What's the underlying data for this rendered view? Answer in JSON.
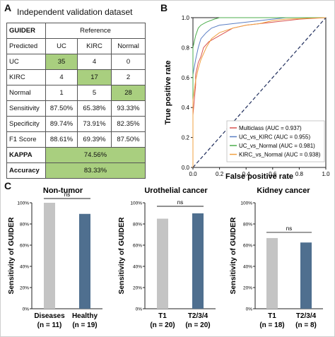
{
  "panels": {
    "a": "A",
    "b": "B",
    "c": "C"
  },
  "table": {
    "title": "Independent validation dataset",
    "corner": "GUIDER",
    "reference_label": "Reference",
    "predicted_label": "Predicted",
    "columns": [
      "UC",
      "KIRC",
      "Normal"
    ],
    "rows": [
      {
        "label": "UC",
        "values": [
          "35",
          "4",
          "0"
        ]
      },
      {
        "label": "KIRC",
        "values": [
          "4",
          "17",
          "2"
        ]
      },
      {
        "label": "Normal",
        "values": [
          "1",
          "5",
          "28"
        ]
      }
    ],
    "metrics": [
      {
        "label": "Sensitivity",
        "values": [
          "87.50%",
          "65.38%",
          "93.33%"
        ]
      },
      {
        "label": "Specificity",
        "values": [
          "89.74%",
          "73.91%",
          "82.35%"
        ]
      },
      {
        "label": "F1 Score",
        "values": [
          "88.61%",
          "69.39%",
          "87.50%"
        ]
      }
    ],
    "kappa": {
      "label": "KAPPA",
      "value": "74.56%"
    },
    "accuracy": {
      "label": "Accuracy",
      "value": "83.33%"
    }
  },
  "chart_data": [
    {
      "type": "line",
      "xlabel": "False positive rate",
      "ylabel": "True positive rate",
      "xlim": [
        0,
        1
      ],
      "ylim": [
        0,
        1
      ],
      "xticks": [
        "0.0",
        "0.2",
        "0.4",
        "0.6",
        "0.8",
        "1.0"
      ],
      "yticks": [
        "0.0",
        "0.2",
        "0.4",
        "0.6",
        "0.8",
        "1.0"
      ],
      "legend_position": "bottom-right",
      "series": [
        {
          "name": "Multiclass (AUC = 0.937)",
          "color": "#d9534f",
          "x": [
            0,
            0,
            0.02,
            0.02,
            0.04,
            0.06,
            0.08,
            0.12,
            0.16,
            0.2,
            0.24,
            0.3,
            0.4,
            0.5,
            0.6,
            0.7,
            0.8,
            1.0
          ],
          "y": [
            0,
            0.35,
            0.55,
            0.62,
            0.7,
            0.74,
            0.8,
            0.84,
            0.86,
            0.88,
            0.9,
            0.93,
            0.95,
            0.96,
            0.97,
            0.98,
            0.99,
            1.0
          ]
        },
        {
          "name": "UC_vs_KIRC (AUC = 0.955)",
          "color": "#5b7fc4",
          "x": [
            0,
            0,
            0.02,
            0.04,
            0.06,
            0.1,
            0.14,
            0.2,
            0.3,
            0.4,
            0.5,
            0.6,
            0.7,
            1.0
          ],
          "y": [
            0,
            0.62,
            0.72,
            0.8,
            0.86,
            0.9,
            0.93,
            0.95,
            0.96,
            0.97,
            0.98,
            0.99,
            1.0,
            1.0
          ]
        },
        {
          "name": "UC_vs_Normal (AUC = 0.981)",
          "color": "#4cae4c",
          "x": [
            0,
            0,
            0.02,
            0.04,
            0.06,
            0.1,
            0.16,
            0.2,
            0.3,
            1.0
          ],
          "y": [
            0,
            0.8,
            0.88,
            0.93,
            0.95,
            0.97,
            0.99,
            1.0,
            1.0,
            1.0
          ]
        },
        {
          "name": "KIRC_vs_Normal (AUC = 0.938)",
          "color": "#f0a040",
          "x": [
            0,
            0,
            0.02,
            0.04,
            0.06,
            0.1,
            0.14,
            0.2,
            0.3,
            0.4,
            0.5,
            0.6,
            0.7,
            1.0
          ],
          "y": [
            0,
            0.45,
            0.58,
            0.66,
            0.72,
            0.8,
            0.86,
            0.9,
            0.93,
            0.95,
            0.96,
            0.98,
            0.99,
            1.0
          ]
        }
      ],
      "diagonal": {
        "color": "#1f2d5c",
        "style": "dashed"
      }
    },
    {
      "type": "bar",
      "title": "Non-tumor",
      "ylabel": "Sensitivity of GUIDER",
      "ylim": [
        0,
        100
      ],
      "yticks": [
        "0%",
        "20%",
        "40%",
        "60%",
        "80%",
        "100%"
      ],
      "categories": [
        "Diseases",
        "Healthy"
      ],
      "subcategories": [
        "(n = 11)",
        "(n = 19)"
      ],
      "values": [
        100,
        89.5
      ],
      "colors": [
        "#c4c4c4",
        "#4f6f8f"
      ],
      "annotation": "ns"
    },
    {
      "type": "bar",
      "title": "Urothelial cancer",
      "ylabel": "Sensitivity of GUIDER",
      "ylim": [
        0,
        100
      ],
      "yticks": [
        "0%",
        "20%",
        "40%",
        "60%",
        "80%",
        "100%"
      ],
      "categories": [
        "T1",
        "T2/3/4"
      ],
      "subcategories": [
        "(n = 20)",
        "(n = 20)"
      ],
      "values": [
        85,
        90
      ],
      "colors": [
        "#c4c4c4",
        "#4f6f8f"
      ],
      "annotation": "ns"
    },
    {
      "type": "bar",
      "title": "Kidney cancer",
      "ylabel": "Sensitivity of GUIDER",
      "ylim": [
        0,
        100
      ],
      "yticks": [
        "0%",
        "20%",
        "40%",
        "60%",
        "80%",
        "100%"
      ],
      "categories": [
        "T1",
        "T2/3/4"
      ],
      "subcategories": [
        "(n = 18)",
        "(n = 8)"
      ],
      "values": [
        66.7,
        62.5
      ],
      "colors": [
        "#c4c4c4",
        "#4f6f8f"
      ],
      "annotation": "ns"
    }
  ]
}
